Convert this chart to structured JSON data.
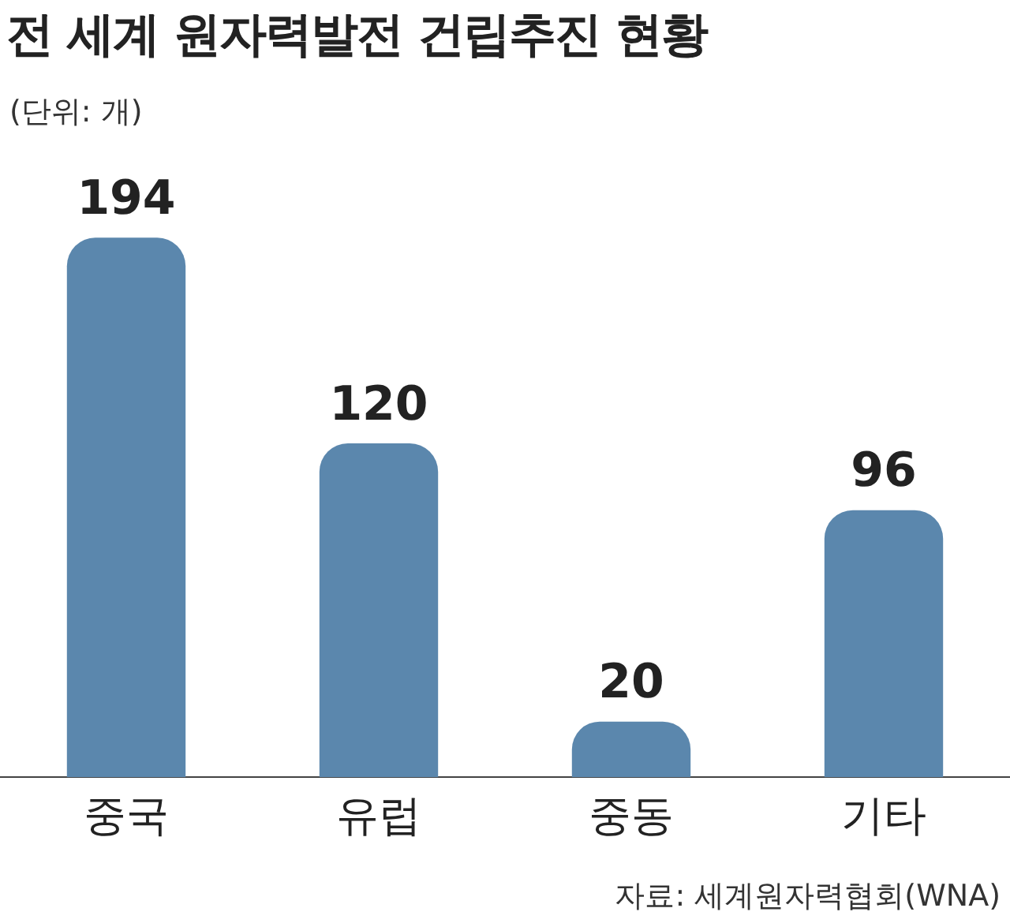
{
  "chart_data": {
    "type": "bar",
    "title": "전 세계 원자력발전 건립추진 현황",
    "subtitle": "(단위: 개)",
    "categories": [
      "중국",
      "유럽",
      "중동",
      "기타"
    ],
    "values": [
      194,
      120,
      20,
      96
    ],
    "color": "#5b87ad",
    "data_labels": true,
    "annotations": [
      "자료: 세계원자력협회(WNA)"
    ]
  }
}
